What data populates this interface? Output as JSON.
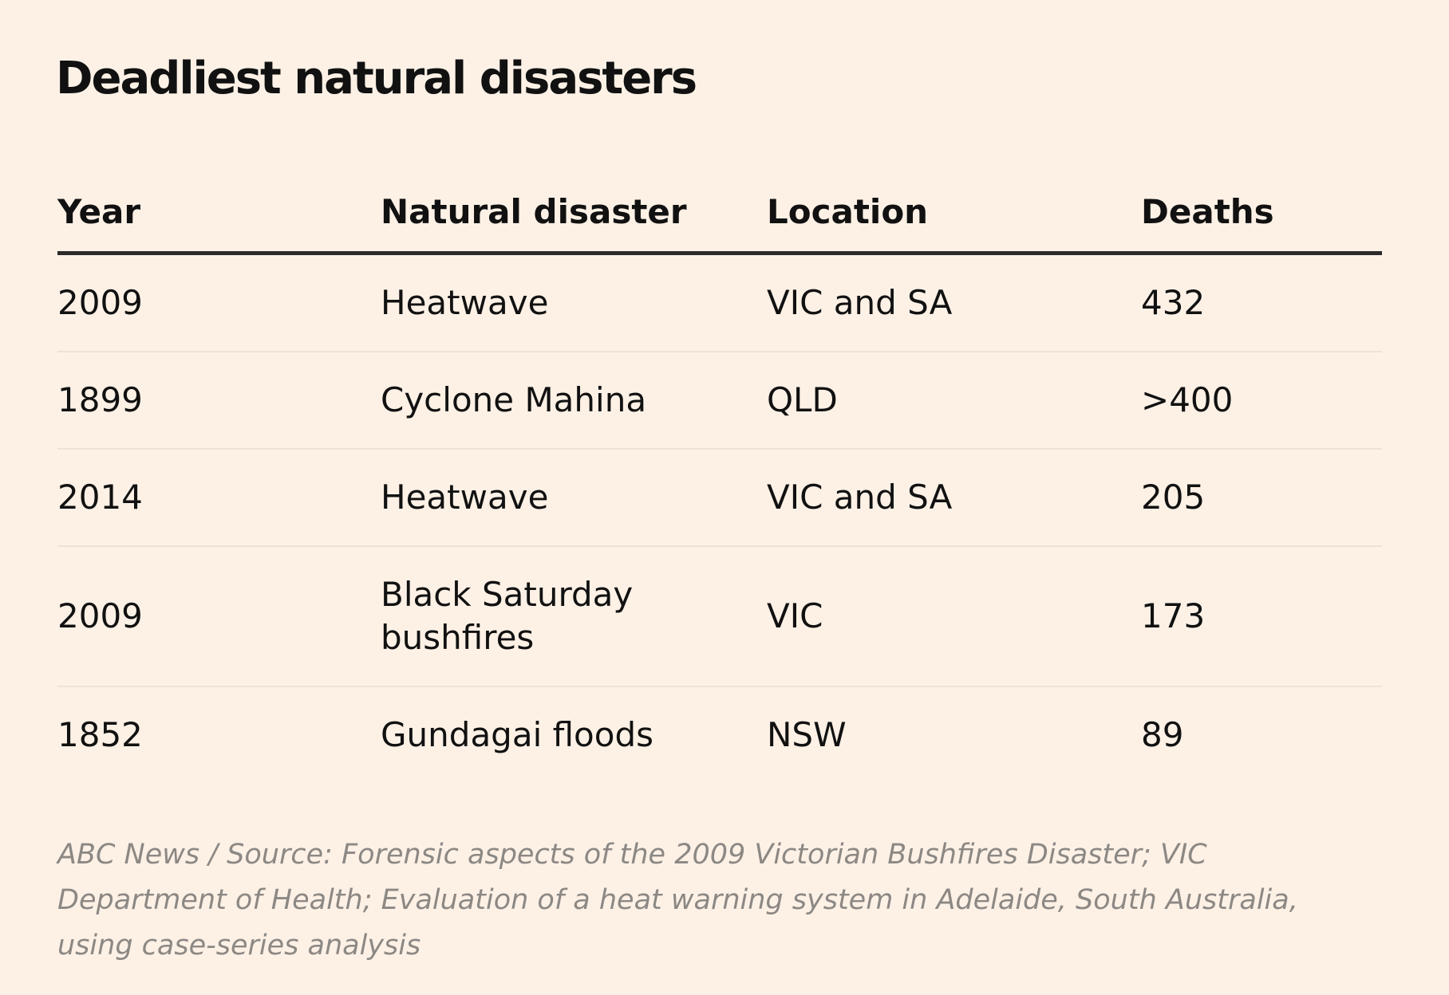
{
  "title": "Deadliest natural disasters",
  "table": {
    "columns": [
      "Year",
      "Natural disaster",
      "Location",
      "Deaths"
    ],
    "rows": [
      [
        "2009",
        "Heatwave",
        "VIC and SA",
        "432"
      ],
      [
        "1899",
        "Cyclone Mahina",
        "QLD",
        ">400"
      ],
      [
        "2014",
        "Heatwave",
        "VIC and SA",
        "205"
      ],
      [
        "2009",
        "Black Saturday bushfires",
        "VIC",
        "173"
      ],
      [
        "1852",
        "Gundagai floods",
        "NSW",
        "89"
      ]
    ]
  },
  "footer": "ABC News / Source: Forensic aspects of the 2009 Victorian Bushfires Disaster; VIC Department of Health; Evaluation of a heat warning system in Adelaide, South Australia, using case-series analysis"
}
